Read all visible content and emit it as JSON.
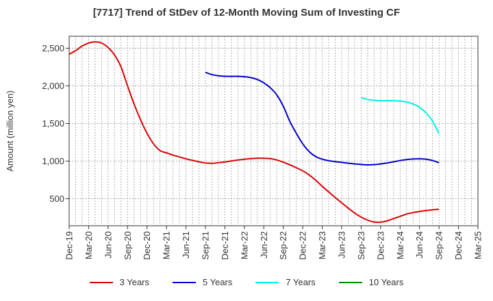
{
  "chart_data": {
    "type": "line",
    "title": "[7717]  Trend of StDev of 12-Month Moving Sum of Investing CF",
    "ylabel": "Amount (million yen)",
    "xlabel": "",
    "x_ticks": [
      "Dec-19",
      "Mar-20",
      "Jun-20",
      "Sep-20",
      "Dec-20",
      "Mar-21",
      "Jun-21",
      "Sep-21",
      "Dec-21",
      "Mar-22",
      "Jun-22",
      "Sep-22",
      "Dec-22",
      "Mar-23",
      "Jun-23",
      "Sep-23",
      "Dec-23",
      "Mar-24",
      "Jun-24",
      "Sep-24",
      "Dec-24",
      "Mar-25"
    ],
    "y_ticks": [
      500,
      1000,
      1500,
      2000,
      2500
    ],
    "ylim": [
      140,
      2660
    ],
    "grid": true,
    "legend_position": "bottom",
    "series": [
      {
        "name": "3 Years",
        "color": "#dd0000",
        "points": [
          [
            "Dec-19",
            2420
          ],
          [
            "Jan-20",
            2470
          ],
          [
            "Feb-20",
            2530
          ],
          [
            "Mar-20",
            2570
          ],
          [
            "Apr-20",
            2585
          ],
          [
            "May-20",
            2570
          ],
          [
            "Jun-20",
            2510
          ],
          [
            "Jul-20",
            2410
          ],
          [
            "Aug-20",
            2250
          ],
          [
            "Sep-20",
            2000
          ],
          [
            "Oct-20",
            1760
          ],
          [
            "Nov-20",
            1550
          ],
          [
            "Dec-20",
            1370
          ],
          [
            "Jan-21",
            1230
          ],
          [
            "Feb-21",
            1140
          ],
          [
            "Mar-21",
            1110
          ],
          [
            "Apr-21",
            1080
          ],
          [
            "May-21",
            1055
          ],
          [
            "Jun-21",
            1030
          ],
          [
            "Jul-21",
            1010
          ],
          [
            "Aug-21",
            990
          ],
          [
            "Sep-21",
            975
          ],
          [
            "Oct-21",
            970
          ],
          [
            "Nov-21",
            978
          ],
          [
            "Dec-21",
            988
          ],
          [
            "Jan-22",
            1002
          ],
          [
            "Feb-22",
            1015
          ],
          [
            "Mar-22",
            1025
          ],
          [
            "Apr-22",
            1033
          ],
          [
            "May-22",
            1038
          ],
          [
            "Jun-22",
            1038
          ],
          [
            "Jul-22",
            1033
          ],
          [
            "Aug-22",
            1015
          ],
          [
            "Sep-22",
            985
          ],
          [
            "Oct-22",
            950
          ],
          [
            "Nov-22",
            912
          ],
          [
            "Dec-22",
            870
          ],
          [
            "Jan-23",
            815
          ],
          [
            "Feb-23",
            745
          ],
          [
            "Mar-23",
            665
          ],
          [
            "Apr-23",
            590
          ],
          [
            "May-23",
            515
          ],
          [
            "Jun-23",
            445
          ],
          [
            "Jul-23",
            375
          ],
          [
            "Aug-23",
            310
          ],
          [
            "Sep-23",
            255
          ],
          [
            "Oct-23",
            215
          ],
          [
            "Nov-23",
            190
          ],
          [
            "Dec-23",
            188
          ],
          [
            "Jan-24",
            205
          ],
          [
            "Feb-24",
            235
          ],
          [
            "Mar-24",
            265
          ],
          [
            "Apr-24",
            295
          ],
          [
            "May-24",
            315
          ],
          [
            "Jun-24",
            330
          ],
          [
            "Jul-24",
            342
          ],
          [
            "Aug-24",
            352
          ],
          [
            "Sep-24",
            358
          ]
        ]
      },
      {
        "name": "5 Years",
        "color": "#0000cc",
        "points": [
          [
            "Sep-21",
            2180
          ],
          [
            "Oct-21",
            2150
          ],
          [
            "Nov-21",
            2135
          ],
          [
            "Dec-21",
            2128
          ],
          [
            "Jan-22",
            2127
          ],
          [
            "Feb-22",
            2127
          ],
          [
            "Mar-22",
            2122
          ],
          [
            "Apr-22",
            2110
          ],
          [
            "May-22",
            2085
          ],
          [
            "Jun-22",
            2040
          ],
          [
            "Jul-22",
            1975
          ],
          [
            "Aug-22",
            1880
          ],
          [
            "Sep-22",
            1730
          ],
          [
            "Oct-22",
            1530
          ],
          [
            "Nov-22",
            1370
          ],
          [
            "Dec-22",
            1230
          ],
          [
            "Jan-23",
            1125
          ],
          [
            "Feb-23",
            1060
          ],
          [
            "Mar-23",
            1025
          ],
          [
            "Apr-23",
            1005
          ],
          [
            "May-23",
            993
          ],
          [
            "Jun-23",
            983
          ],
          [
            "Jul-23",
            972
          ],
          [
            "Aug-23",
            962
          ],
          [
            "Sep-23",
            955
          ],
          [
            "Oct-23",
            950
          ],
          [
            "Nov-23",
            953
          ],
          [
            "Dec-23",
            962
          ],
          [
            "Jan-24",
            975
          ],
          [
            "Feb-24",
            990
          ],
          [
            "Mar-24",
            1007
          ],
          [
            "Apr-24",
            1020
          ],
          [
            "May-24",
            1028
          ],
          [
            "Jun-24",
            1030
          ],
          [
            "Jul-24",
            1025
          ],
          [
            "Aug-24",
            1008
          ],
          [
            "Sep-24",
            978
          ]
        ]
      },
      {
        "name": "7 Years",
        "color": "#00eeee",
        "points": [
          [
            "Sep-23",
            1845
          ],
          [
            "Oct-23",
            1820
          ],
          [
            "Nov-23",
            1808
          ],
          [
            "Dec-23",
            1803
          ],
          [
            "Jan-24",
            1803
          ],
          [
            "Feb-24",
            1803
          ],
          [
            "Mar-24",
            1798
          ],
          [
            "Apr-24",
            1785
          ],
          [
            "May-24",
            1760
          ],
          [
            "Jun-24",
            1715
          ],
          [
            "Jul-24",
            1640
          ],
          [
            "Aug-24",
            1530
          ],
          [
            "Sep-24",
            1365
          ]
        ]
      },
      {
        "name": "10 Years",
        "color": "#008800",
        "points": []
      }
    ]
  }
}
